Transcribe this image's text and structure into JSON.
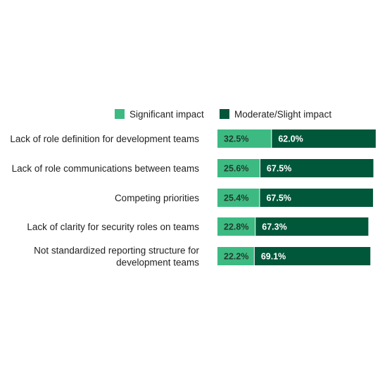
{
  "chart_data": {
    "type": "bar",
    "orientation": "horizontal",
    "stacked": true,
    "categories": [
      [
        "Lack of role definition for development teams"
      ],
      [
        "Lack of role communications between teams"
      ],
      [
        "Competing priorities"
      ],
      [
        "Lack of clarity for security roles on teams"
      ],
      [
        "Not standardized reporting structure for",
        "development teams"
      ]
    ],
    "series": [
      {
        "name": "Significant impact",
        "color": "#3dba82",
        "label_color": "#1f3b2c",
        "values": [
          32.5,
          25.6,
          25.4,
          22.8,
          22.2
        ]
      },
      {
        "name": "Moderate/Slight impact",
        "color": "#00573a",
        "label_color": "#ffffff",
        "values": [
          62.0,
          67.5,
          67.5,
          67.3,
          69.1
        ]
      }
    ],
    "value_suffix": "%",
    "xlim": [
      0,
      100
    ],
    "legend_position": "top",
    "grid": false
  }
}
